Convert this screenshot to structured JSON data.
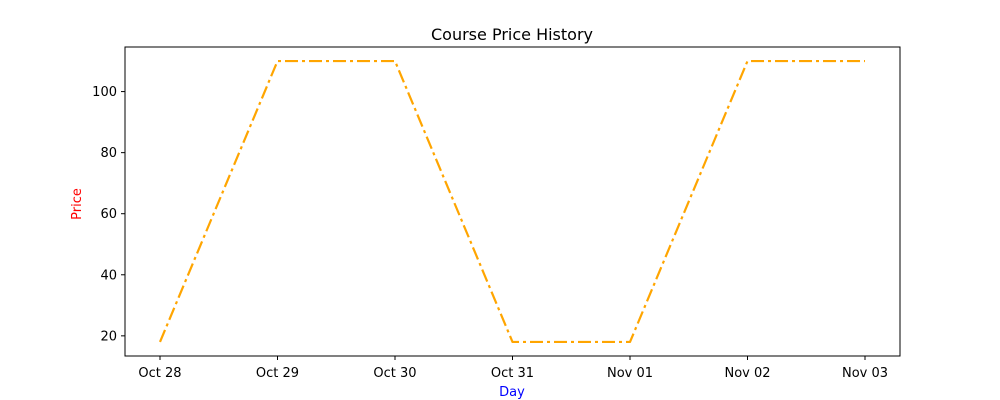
{
  "chart_data": {
    "type": "line",
    "title": "Course Price History",
    "xlabel": "Day",
    "ylabel": "Price",
    "xlabel_color": "#0000ff",
    "ylabel_color": "#ff0000",
    "x": [
      "Oct 28",
      "Oct 29",
      "Oct 30",
      "Oct 31",
      "Nov 01",
      "Nov 02",
      "Nov 03"
    ],
    "series": [
      {
        "values": [
          18,
          110,
          110,
          18,
          18,
          110,
          110
        ],
        "color": "#ffa500",
        "line_style": "dashdot"
      }
    ],
    "y_ticks": [
      20,
      40,
      60,
      80,
      100
    ],
    "ylim": [
      13.4,
      114.6
    ],
    "grid": false
  }
}
